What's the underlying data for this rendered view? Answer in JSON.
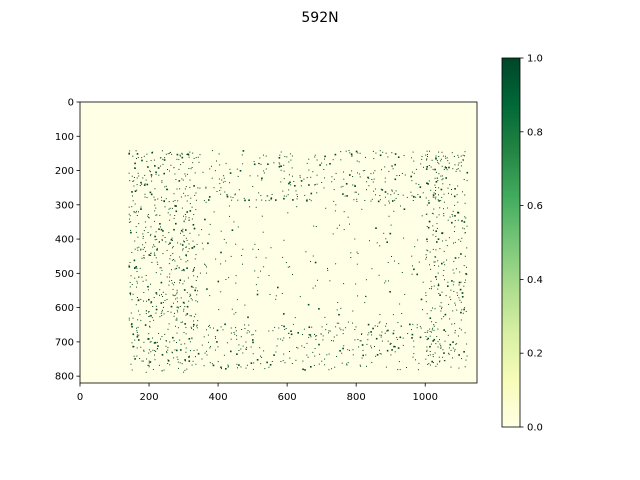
{
  "chart_data": {
    "type": "heatmap",
    "title": "592N",
    "xlabel": "",
    "ylabel": "",
    "xlim": [
      0,
      1150
    ],
    "ylim": [
      820,
      0
    ],
    "x_ticks": [
      0,
      200,
      400,
      600,
      800,
      1000
    ],
    "y_ticks": [
      0,
      100,
      200,
      300,
      400,
      500,
      600,
      700,
      800
    ],
    "colorbar": {
      "range": [
        0.0,
        1.0
      ],
      "ticks": [
        "0.0",
        "0.2",
        "0.4",
        "0.6",
        "0.8",
        "1.0"
      ],
      "colormap": "Greens (light yellow to dark green)",
      "stops": [
        "#ffffe5",
        "#f7fcb9",
        "#d9f0a3",
        "#addd8e",
        "#78c679",
        "#41ab5d",
        "#238443",
        "#006837",
        "#004529"
      ]
    },
    "background_value": 0.0,
    "description_of_values": "Sparse binary map: mostly 0 with scattered pixels at 1.0 forming a rectangular ring concentrated along x≈130–1120, y≈130–790; densest along the left edge (x≈180–330).",
    "point_regions": [
      {
        "x": [
          140,
          340
        ],
        "y": [
          140,
          790
        ],
        "density": "high"
      },
      {
        "x": [
          340,
          1060
        ],
        "y": [
          140,
          290
        ],
        "density": "medium"
      },
      {
        "x": [
          340,
          1060
        ],
        "y": [
          640,
          780
        ],
        "density": "medium"
      },
      {
        "x": [
          1000,
          1120
        ],
        "y": [
          140,
          780
        ],
        "density": "medium"
      },
      {
        "x": [
          340,
          1000
        ],
        "y": [
          290,
          640
        ],
        "density": "low"
      }
    ]
  }
}
